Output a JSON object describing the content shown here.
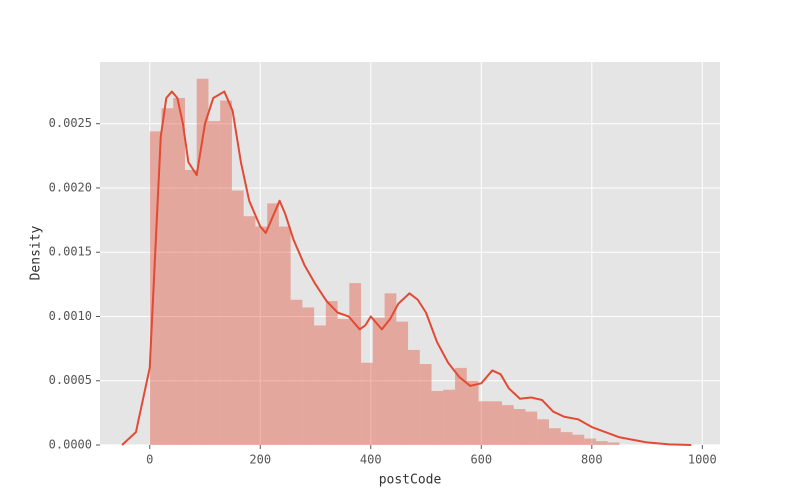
{
  "chart_data": {
    "type": "histogram",
    "xlabel": "postCode",
    "ylabel": "Density",
    "color": "#e24a33",
    "bins": [
      0,
      21.25,
      42.5,
      63.75,
      85,
      106.25,
      127.5,
      148.75,
      170,
      191.25,
      212.5,
      233.75,
      255,
      276.25,
      297.5,
      318.75,
      340,
      361.25,
      382.5,
      403.75,
      425,
      446.25,
      467.5,
      488.75,
      510,
      531.25,
      552.5,
      573.75,
      595,
      616.25,
      637.5,
      658.75,
      680,
      701.25,
      722.5,
      743.75,
      765,
      786.25,
      807.5,
      828.75,
      850
    ],
    "counts": [
      0.00244,
      0.00262,
      0.0027,
      0.00214,
      0.00285,
      0.00252,
      0.00268,
      0.00198,
      0.00178,
      0.0017,
      0.00188,
      0.0017,
      0.00113,
      0.00107,
      0.00093,
      0.00112,
      0.00098,
      0.00126,
      0.00064,
      0.00099,
      0.00118,
      0.00096,
      0.00074,
      0.00063,
      0.00042,
      0.00043,
      0.0006,
      0.0005,
      0.00034,
      0.00034,
      0.00031,
      0.00028,
      0.00026,
      0.0002,
      0.00013,
      0.0001,
      8e-05,
      5e-05,
      3e-05,
      2e-05
    ],
    "kde": {
      "x": [
        -50,
        -25,
        0,
        10,
        20,
        30,
        40,
        50,
        60,
        70,
        85,
        100,
        115,
        135,
        150,
        165,
        180,
        200,
        210,
        225,
        235,
        245,
        260,
        280,
        300,
        320,
        340,
        360,
        380,
        390,
        400,
        410,
        420,
        435,
        450,
        470,
        485,
        500,
        520,
        540,
        560,
        580,
        600,
        620,
        635,
        650,
        670,
        690,
        710,
        730,
        750,
        775,
        800,
        825,
        850,
        875,
        900,
        940,
        980
      ],
      "values": [
        0,
        0.0001,
        0.0006,
        0.0015,
        0.0024,
        0.0027,
        0.00275,
        0.0027,
        0.0025,
        0.0022,
        0.0021,
        0.0025,
        0.0027,
        0.00275,
        0.0026,
        0.0022,
        0.0019,
        0.0017,
        0.00165,
        0.0018,
        0.0019,
        0.0018,
        0.0016,
        0.0014,
        0.00125,
        0.00112,
        0.00103,
        0.001,
        0.0009,
        0.00093,
        0.001,
        0.00095,
        0.0009,
        0.00098,
        0.0011,
        0.00118,
        0.00113,
        0.00103,
        0.0008,
        0.00064,
        0.00053,
        0.00046,
        0.00048,
        0.00058,
        0.00055,
        0.00044,
        0.00036,
        0.00037,
        0.00035,
        0.00026,
        0.00022,
        0.0002,
        0.00014,
        0.0001,
        6e-05,
        4e-05,
        2e-05,
        5e-06,
        0
      ]
    },
    "xlim": [
      -90,
      1032
    ],
    "ylim": [
      0,
      0.00298
    ],
    "xticks": [
      0,
      200,
      400,
      600,
      800,
      1000
    ],
    "yticks": [
      {
        "value": 0,
        "label": "0.0000"
      },
      0.0005,
      {
        "value": 0.001,
        "label": "0.0010"
      },
      0.0015,
      {
        "value": 0.002,
        "label": "0.0020"
      },
      0.0025
    ],
    "grid": true
  }
}
